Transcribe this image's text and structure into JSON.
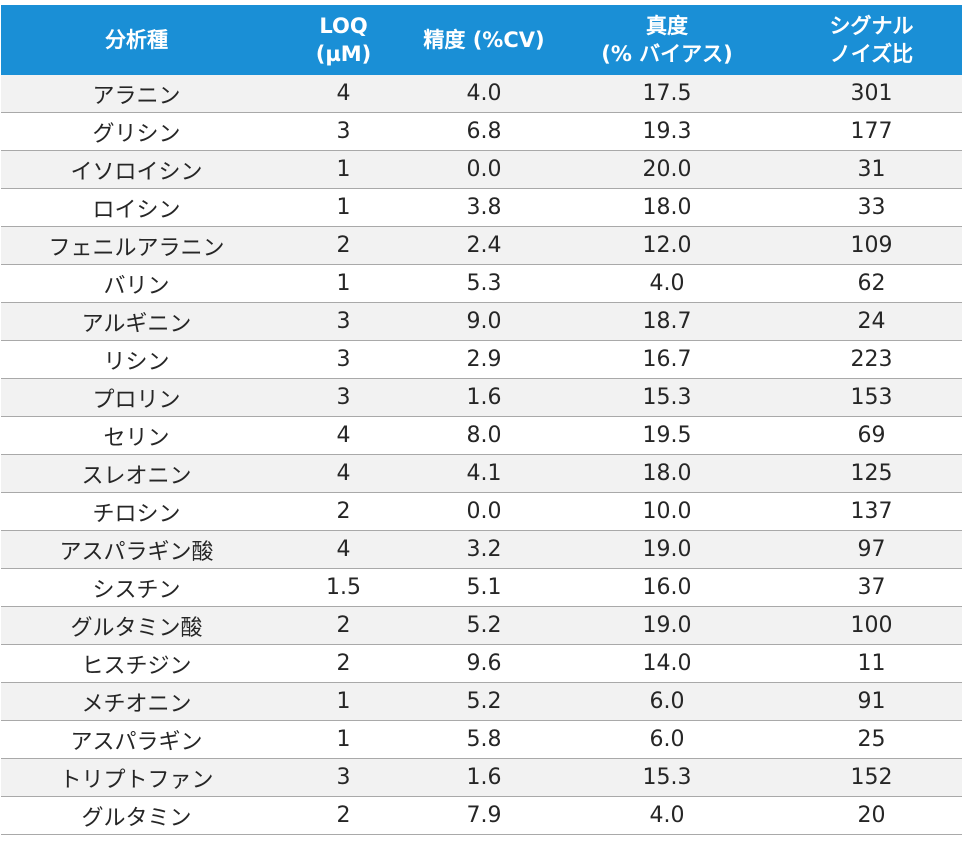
{
  "table": {
    "headers": [
      [
        "分析種"
      ],
      [
        "LOQ",
        "(µM)"
      ],
      [
        "精度 (%CV)"
      ],
      [
        "真度",
        "(% バイアス)"
      ],
      [
        "シグナル",
        "ノイズ比"
      ]
    ],
    "rows": [
      [
        "アラニン",
        "4",
        "4.0",
        "17.5",
        "301"
      ],
      [
        "グリシン",
        "3",
        "6.8",
        "19.3",
        "177"
      ],
      [
        "イソロイシン",
        "1",
        "0.0",
        "20.0",
        "31"
      ],
      [
        "ロイシン",
        "1",
        "3.8",
        "18.0",
        "33"
      ],
      [
        "フェニルアラニン",
        "2",
        "2.4",
        "12.0",
        "109"
      ],
      [
        "バリン",
        "1",
        "5.3",
        "4.0",
        "62"
      ],
      [
        "アルギニン",
        "3",
        "9.0",
        "18.7",
        "24"
      ],
      [
        "リシン",
        "3",
        "2.9",
        "16.7",
        "223"
      ],
      [
        "プロリン",
        "3",
        "1.6",
        "15.3",
        "153"
      ],
      [
        "セリン",
        "4",
        "8.0",
        "19.5",
        "69"
      ],
      [
        "スレオニン",
        "4",
        "4.1",
        "18.0",
        "125"
      ],
      [
        "チロシン",
        "2",
        "0.0",
        "10.0",
        "137"
      ],
      [
        "アスパラギン酸",
        "4",
        "3.2",
        "19.0",
        "97"
      ],
      [
        "シスチン",
        "1.5",
        "5.1",
        "16.0",
        "37"
      ],
      [
        "グルタミン酸",
        "2",
        "5.2",
        "19.0",
        "100"
      ],
      [
        "ヒスチジン",
        "2",
        "9.6",
        "14.0",
        "11"
      ],
      [
        "メチオニン",
        "1",
        "5.2",
        "6.0",
        "91"
      ],
      [
        "アスパラギン",
        "1",
        "5.8",
        "6.0",
        "25"
      ],
      [
        "トリプトファン",
        "3",
        "1.6",
        "15.3",
        "152"
      ],
      [
        "グルタミン",
        "2",
        "7.9",
        "4.0",
        "20"
      ]
    ]
  },
  "colors": {
    "header_bg": "#1a8fd6",
    "header_text": "#ffffff",
    "row_alt_bg": "#f2f2f2",
    "row_bg": "#ffffff",
    "row_border": "#a9a9a9"
  }
}
